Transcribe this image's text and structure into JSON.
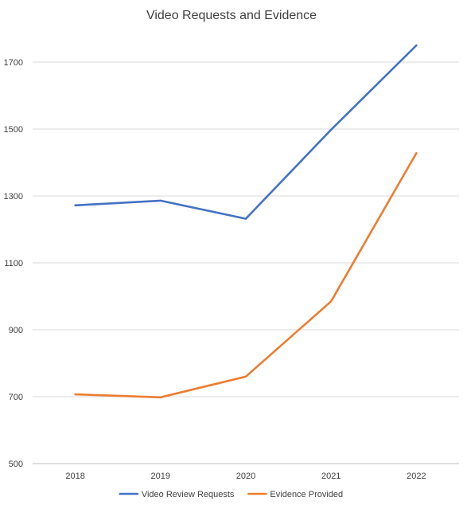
{
  "chart_data": {
    "type": "line",
    "title": "Video Requests and Evidence",
    "xlabel": "",
    "ylabel": "",
    "categories": [
      "2018",
      "2019",
      "2020",
      "2021",
      "2022"
    ],
    "ylim": [
      500,
      1800
    ],
    "yticks": [
      500,
      700,
      900,
      1100,
      1300,
      1500,
      1700
    ],
    "grid": true,
    "legend": "bottom",
    "series": [
      {
        "name": "Video Review Requests",
        "color": "#4472C4",
        "values": [
          1272,
          1286,
          1232,
          1498,
          1750
        ]
      },
      {
        "name": "Evidence Provided",
        "color": "#ED7D31",
        "values": [
          707,
          698,
          760,
          985,
          1428
        ]
      }
    ]
  }
}
